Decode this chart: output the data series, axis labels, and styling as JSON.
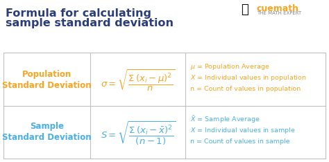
{
  "title_line1": "Formula for calculating",
  "title_line2": "sample standard deviation",
  "title_color": "#2c3e7a",
  "title_fontsize": 11.5,
  "bg_color": "#ffffff",
  "table_border_color": "#c0c0c0",
  "orange_color": "#f5a623",
  "blue_color": "#4ab0e4",
  "row1_label1": "Population",
  "row1_label2": "Standard Deviation",
  "row1_formula": "$\\sigma = \\sqrt{\\dfrac{\\Sigma\\,(x_i - \\mu)^2}{n}}$",
  "row1_desc1": "$\\mu$ = Population Average",
  "row1_desc2": "$X$ = Individual values in population",
  "row1_desc3": "n = Count of values in population",
  "row2_label1": "Sample",
  "row2_label2": "Standard Deviation",
  "row2_formula": "$S = \\sqrt{\\dfrac{\\Sigma\\,(x_i - \\bar{x})^2}{(n - 1)}}$",
  "row2_desc1": "$\\bar{X}$ = Sample Average",
  "row2_desc2": "$X$ = Individual values in sample",
  "row2_desc3": "n = Count of values in sample",
  "cuemath_color": "#4ab0e4",
  "cuemath_sub_color": "#888888"
}
